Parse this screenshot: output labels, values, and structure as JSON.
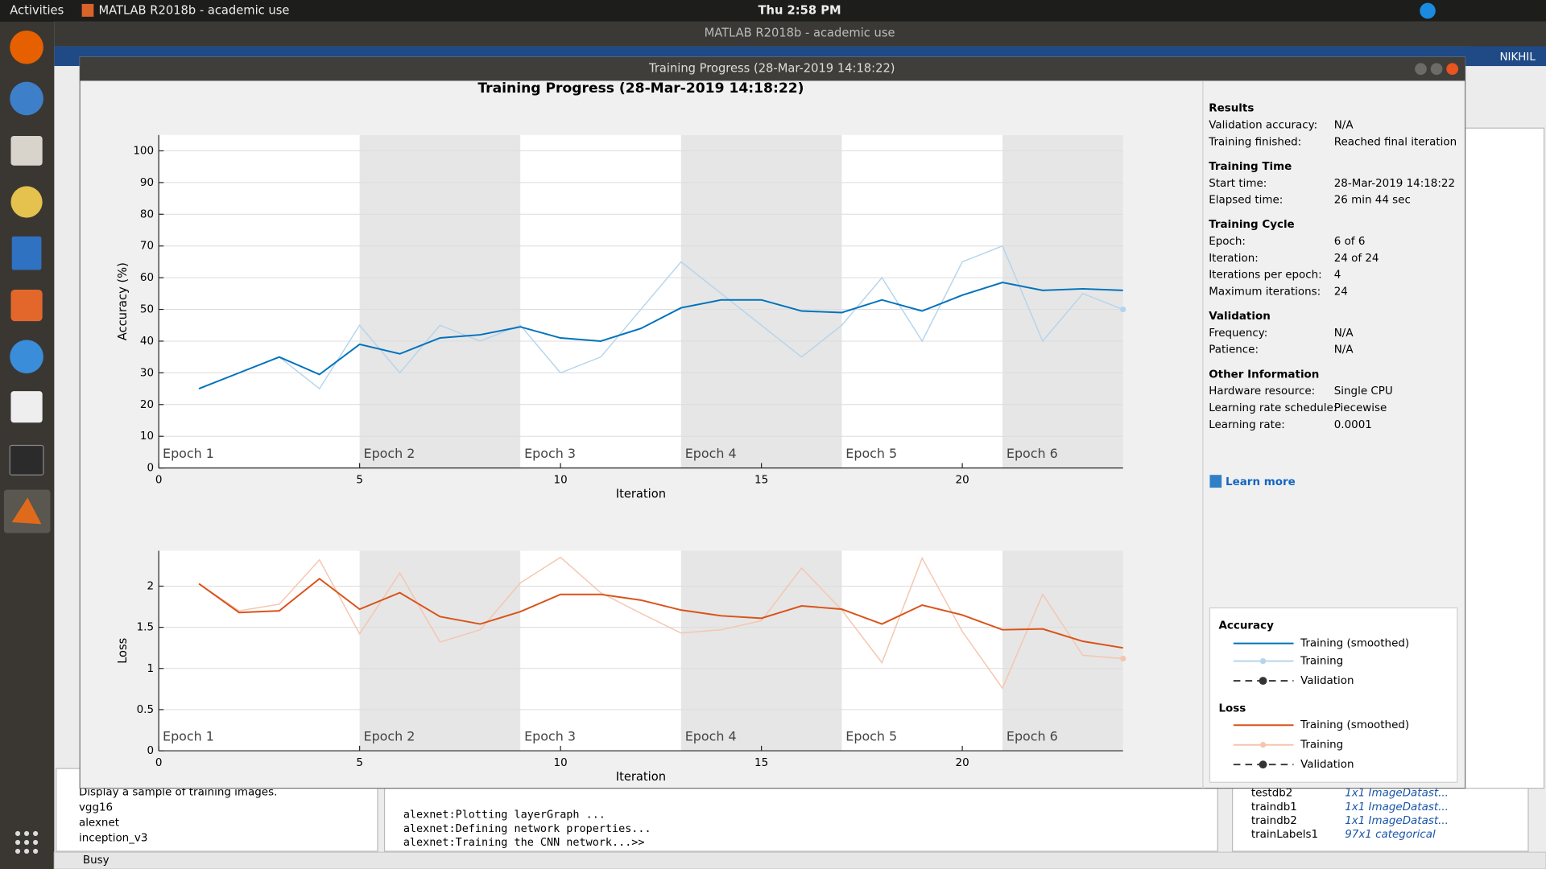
{
  "topbar": {
    "activities": "Activities",
    "app": "MATLAB R2018b - academic use",
    "clock": "Thu  2:58 PM",
    "user": "NIKHIL"
  },
  "matlab_title": "MATLAB R2018b - academic use",
  "window_title": "Training Progress (28-Mar-2019 14:18:22)",
  "chart_data": [
    {
      "type": "line",
      "title": "Training Progress (28-Mar-2019 14:18:22)",
      "ylabel": "Accuracy (%)",
      "xlabel": "Iteration",
      "legend_title": "Accuracy",
      "validation": "Validation",
      "x": [
        1,
        2,
        3,
        4,
        5,
        6,
        7,
        8,
        9,
        10,
        11,
        12,
        13,
        14,
        15,
        16,
        17,
        18,
        19,
        20,
        21,
        22,
        23,
        24
      ],
      "xlim": [
        0,
        24
      ],
      "xticks": [
        0,
        5,
        10,
        15,
        20
      ],
      "ylim": [
        0,
        105
      ],
      "yticks": [
        0,
        10,
        20,
        30,
        40,
        50,
        60,
        70,
        80,
        90,
        100
      ],
      "grid": true,
      "epochs": [
        {
          "label": "Epoch 1",
          "start": 0,
          "end": 5
        },
        {
          "label": "Epoch 2",
          "start": 5,
          "end": 9
        },
        {
          "label": "Epoch 3",
          "start": 9,
          "end": 13
        },
        {
          "label": "Epoch 4",
          "start": 13,
          "end": 17
        },
        {
          "label": "Epoch 5",
          "start": 17,
          "end": 21
        },
        {
          "label": "Epoch 6",
          "start": 21,
          "end": 24
        }
      ],
      "series": [
        {
          "name": "Training (smoothed)",
          "color": "#0072bd",
          "values": [
            25,
            30,
            35,
            29.5,
            39,
            36,
            41,
            42,
            44.5,
            41,
            40,
            44,
            50.5,
            53,
            53,
            49.5,
            49,
            53,
            49.5,
            54.5,
            58.5,
            56,
            56.5,
            56
          ]
        },
        {
          "name": "Training",
          "color": "#b6d5ec",
          "values": [
            25,
            30,
            35,
            25,
            45,
            30,
            45,
            40,
            45,
            30,
            35,
            50,
            65,
            55,
            45,
            35,
            45,
            60,
            40,
            65,
            70,
            40,
            55,
            50
          ]
        }
      ]
    },
    {
      "type": "line",
      "ylabel": "Loss",
      "xlabel": "Iteration",
      "legend_title": "Loss",
      "validation": "Validation",
      "x": [
        1,
        2,
        3,
        4,
        5,
        6,
        7,
        8,
        9,
        10,
        11,
        12,
        13,
        14,
        15,
        16,
        17,
        18,
        19,
        20,
        21,
        22,
        23,
        24
      ],
      "xlim": [
        0,
        24
      ],
      "xticks": [
        0,
        5,
        10,
        15,
        20
      ],
      "ylim": [
        0,
        2.43
      ],
      "yticks": [
        0,
        0.5,
        1,
        1.5,
        2
      ],
      "grid": true,
      "epochs": [
        {
          "label": "Epoch 1",
          "start": 0,
          "end": 5
        },
        {
          "label": "Epoch 2",
          "start": 5,
          "end": 9
        },
        {
          "label": "Epoch 3",
          "start": 9,
          "end": 13
        },
        {
          "label": "Epoch 4",
          "start": 13,
          "end": 17
        },
        {
          "label": "Epoch 5",
          "start": 17,
          "end": 21
        },
        {
          "label": "Epoch 6",
          "start": 21,
          "end": 24
        }
      ],
      "series": [
        {
          "name": "Training (smoothed)",
          "color": "#d95319",
          "values": [
            2.03,
            1.68,
            1.7,
            2.09,
            1.72,
            1.92,
            1.63,
            1.54,
            1.69,
            1.9,
            1.9,
            1.83,
            1.71,
            1.64,
            1.61,
            1.76,
            1.72,
            1.54,
            1.77,
            1.65,
            1.47,
            1.48,
            1.33,
            1.25
          ]
        },
        {
          "name": "Training",
          "color": "#f4c6b0",
          "values": [
            2.03,
            1.7,
            1.78,
            2.32,
            1.42,
            2.16,
            1.32,
            1.47,
            2.04,
            2.35,
            1.92,
            1.67,
            1.43,
            1.47,
            1.58,
            2.22,
            1.71,
            1.07,
            2.34,
            1.45,
            0.76,
            1.9,
            1.16,
            1.12
          ]
        }
      ]
    }
  ],
  "info": [
    {
      "heading": "Results",
      "rows": [
        [
          "Validation accuracy:",
          "N/A"
        ],
        [
          "Training finished:",
          "Reached final iteration"
        ]
      ]
    },
    {
      "heading": "Training Time",
      "rows": [
        [
          "Start time:",
          "28-Mar-2019 14:18:22"
        ],
        [
          "Elapsed time:",
          "26 min 44 sec"
        ]
      ]
    },
    {
      "heading": "Training Cycle",
      "rows": [
        [
          "Epoch:",
          "6 of 6"
        ],
        [
          "Iteration:",
          "24 of 24"
        ],
        [
          "Iterations per epoch:",
          "4"
        ],
        [
          "Maximum iterations:",
          "24"
        ]
      ]
    },
    {
      "heading": "Validation",
      "rows": [
        [
          "Frequency:",
          "N/A"
        ],
        [
          "Patience:",
          "N/A"
        ]
      ]
    },
    {
      "heading": "Other Information",
      "rows": [
        [
          "Hardware resource:",
          "Single CPU"
        ],
        [
          "Learning rate schedule:",
          "Piecewise"
        ],
        [
          "Learning rate:",
          "0.0001"
        ]
      ]
    }
  ],
  "learn_more": "Learn more",
  "files": [
    "Display a sample of training images.",
    "vgg16",
    "alexnet",
    "inception_v3"
  ],
  "command_window": [
    "alexnet:Plotting layerGraph ...",
    "alexnet:Defining network properties...",
    "alexnet:Training the CNN network...>>"
  ],
  "workspace": [
    [
      "testdb2",
      "1x1 ImageDatast..."
    ],
    [
      "traindb1",
      "1x1 ImageDatast..."
    ],
    [
      "traindb2",
      "1x1 ImageDatast..."
    ],
    [
      "trainLabels1",
      "97x1 categorical"
    ]
  ],
  "status": "Busy"
}
